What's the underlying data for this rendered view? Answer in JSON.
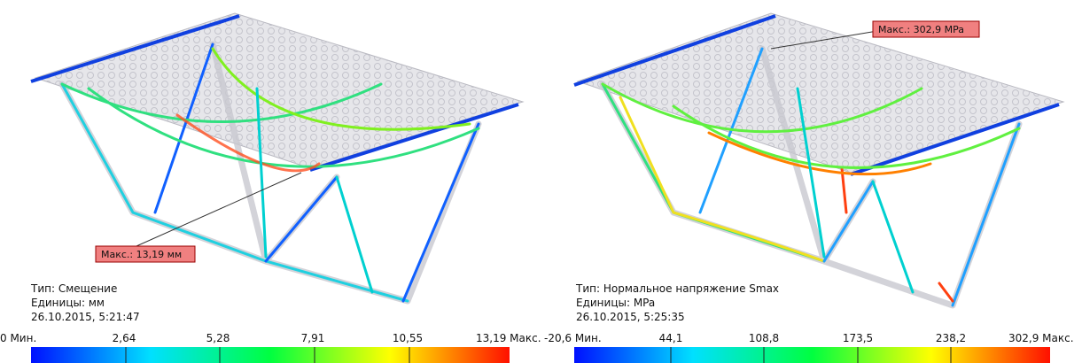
{
  "panels": [
    {
      "max_label": "Макс.: 13,19 мм",
      "info": [
        "Тип: Смещение",
        "Единицы: мм",
        "26.10.2015, 5:21:47"
      ],
      "legend": [
        "0 Мин.",
        "2,64",
        "5,28",
        "7,91",
        "10,55",
        "13,19 Макс."
      ]
    },
    {
      "max_label": "Макс.: 302,9 MPa",
      "info": [
        "Тип: Нормальное напряжение Smax",
        "Единицы: MPa",
        "26.10.2015, 5:25:35"
      ],
      "legend": [
        "-20,6 Мин.",
        "44,1",
        "108,8",
        "173,5",
        "238,2",
        "302,9 Макс."
      ]
    }
  ]
}
